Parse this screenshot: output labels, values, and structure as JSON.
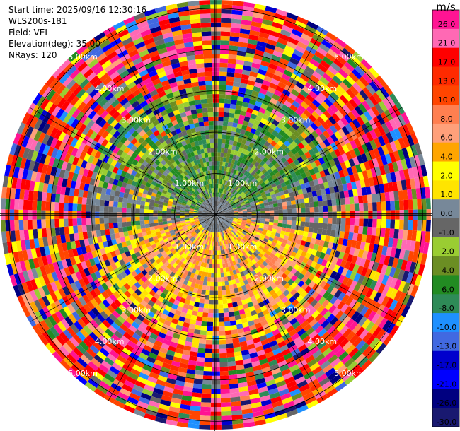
{
  "header": {
    "start_time": "Start time: 2025/09/16 12:30:16",
    "instrument": "WLS200s-181",
    "field": "Field: VEL",
    "elevation": "Elevation(deg): 35.00",
    "nrays": "NRays: 120"
  },
  "chart_data": {
    "type": "heatmap",
    "projection": "polar-ppi",
    "field": "VEL",
    "units": "m/s",
    "n_rays": 120,
    "range_rings_km": [
      1.0,
      2.0,
      3.0,
      4.0,
      5.0
    ],
    "ring_labels": [
      "1.00km",
      "2.00km",
      "3.00km",
      "4.00km",
      "5.00km"
    ],
    "colorbar": {
      "label": "m/s",
      "ticks": [
        "26.0",
        "21.0",
        "17.0",
        "13.0",
        "10.0",
        "8.0",
        "6.0",
        "4.0",
        "2.0",
        "1.0",
        "0.0",
        "-1.0",
        "-2.0",
        "-4.0",
        "-6.0",
        "-8.0",
        "-10.0",
        "-13.0",
        "-17.0",
        "-21.0",
        "-26.0",
        "-30.0"
      ],
      "colors": [
        "#ff1493",
        "#ff69b4",
        "#ff0000",
        "#ff2a00",
        "#ff4500",
        "#ff7f50",
        "#ffa07a",
        "#ffa500",
        "#ffff00",
        "#ffe400",
        "#778899",
        "#666666",
        "#9acd32",
        "#6b8e23",
        "#228b22",
        "#2e8b57",
        "#1e90ff",
        "#4169e1",
        "#0000cd",
        "#0000ff",
        "#000080",
        "#191970"
      ]
    },
    "pattern": {
      "near_north_sector": "green (approx -2 to -8 m/s)",
      "near_south_sector": "yellow/orange (approx 2 to 8 m/s)",
      "center": "gray (approx 0 m/s)",
      "far_range": "noisy, all colors"
    },
    "grid": true
  }
}
